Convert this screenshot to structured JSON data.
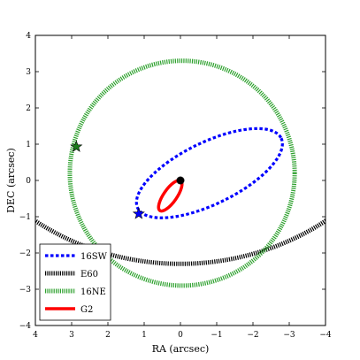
{
  "chart_data": {
    "type": "line",
    "xlabel": "RA (arcsec)",
    "ylabel": "DEC (arcsec)",
    "xlim": [
      4,
      -4
    ],
    "ylim": [
      -4,
      4
    ],
    "xticks": [
      4,
      3,
      2,
      1,
      0,
      -1,
      -2,
      -3,
      -4
    ],
    "yticks": [
      -4,
      -3,
      -2,
      -1,
      0,
      1,
      2,
      3,
      4
    ],
    "xtick_labels": [
      "4",
      "3",
      "2",
      "1",
      "0",
      "−1",
      "−2",
      "−3",
      "−4"
    ],
    "ytick_labels": [
      "−4",
      "−3",
      "−2",
      "−1",
      "0",
      "1",
      "2",
      "3",
      "4"
    ],
    "grid": false,
    "legend_placement": "bottom-left",
    "series": [
      {
        "name": "16SW",
        "color": "#0000ff",
        "style": "dotted",
        "orbit": {
          "center": [
            -0.8,
            0.2
          ],
          "semi_major": 2.2,
          "semi_minor": 0.85,
          "angle_deg": 26
        }
      },
      {
        "name": "E60",
        "color": "#000000",
        "style": "hatched",
        "orbit": {
          "center": [
            0,
            4.3
          ],
          "semi_major": 7.0,
          "semi_minor": 6.6,
          "angle_deg": 0
        }
      },
      {
        "name": "16NE",
        "color": "#2ca02c",
        "style": "hatched",
        "orbit": {
          "center": [
            -0.05,
            0.2
          ],
          "semi_major": 3.1,
          "semi_minor": 3.1,
          "angle_deg": 0
        }
      },
      {
        "name": "G2",
        "color": "#ff0000",
        "style": "solid",
        "orbit": {
          "center": [
            0.28,
            -0.42
          ],
          "semi_major": 0.5,
          "semi_minor": 0.18,
          "angle_deg": 55
        }
      }
    ],
    "markers": [
      {
        "name": "black-dot",
        "x": 0.0,
        "y": 0.0,
        "color": "#000000",
        "shape": "circle"
      },
      {
        "name": "blue-star",
        "x": 1.15,
        "y": -0.92,
        "color": "#0000ff",
        "shape": "star"
      },
      {
        "name": "green-star",
        "x": 2.87,
        "y": 0.93,
        "color": "#1a7a1a",
        "shape": "star"
      }
    ]
  }
}
